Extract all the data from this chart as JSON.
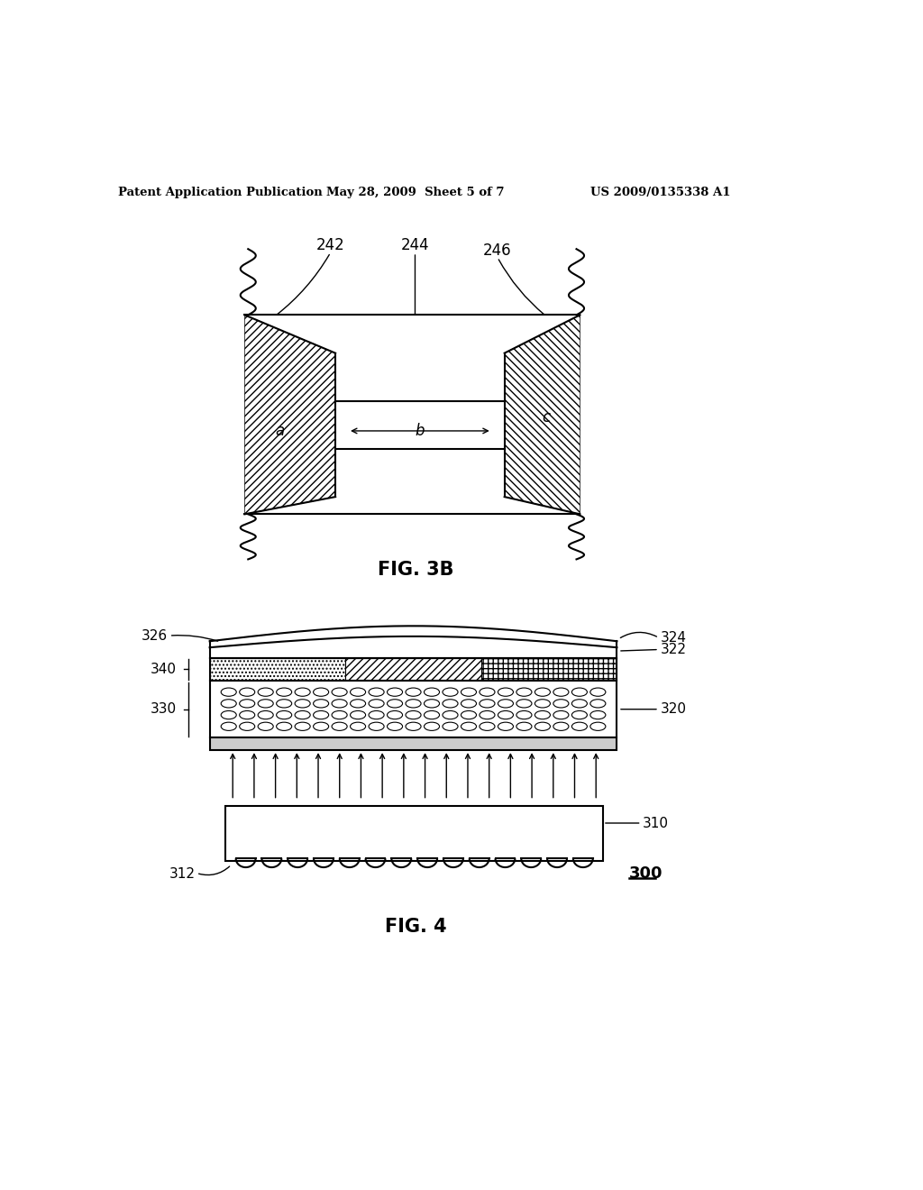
{
  "bg_color": "#ffffff",
  "header_text": "Patent Application Publication",
  "header_date": "May 28, 2009  Sheet 5 of 7",
  "header_patent": "US 2009/0135338 A1",
  "fig3b_label": "FIG. 3B",
  "fig4_label": "FIG. 4",
  "label_242": "242",
  "label_244": "244",
  "label_246": "246",
  "label_a": "a",
  "label_b": "b",
  "label_c": "c",
  "label_326": "326",
  "label_324": "324",
  "label_322": "322",
  "label_340": "340",
  "label_330": "330",
  "label_320": "320",
  "label_310": "310",
  "label_312": "312",
  "label_300": "300"
}
